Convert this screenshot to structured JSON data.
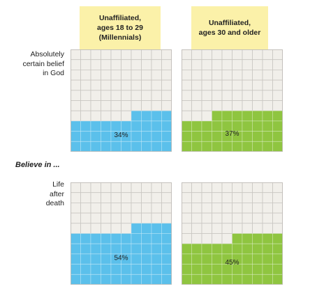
{
  "columns": [
    {
      "label": "Unaffiliated,\nages 18 to 29\n(Millennials)",
      "color": "#5bc0eb"
    },
    {
      "label": "Unaffiliated,\nages 30 and older",
      "color": "#8fc540"
    }
  ],
  "section_label": "Believe in ...",
  "chart_data": {
    "type": "waffle",
    "grid": {
      "cols": 10,
      "rows": 10
    },
    "rows": [
      {
        "label": "Absolutely\ncertain belief\nin God",
        "values": [
          34,
          37
        ]
      },
      {
        "label": "Life\nafter\ndeath",
        "values": [
          54,
          45
        ]
      }
    ],
    "value_suffix": "%"
  }
}
